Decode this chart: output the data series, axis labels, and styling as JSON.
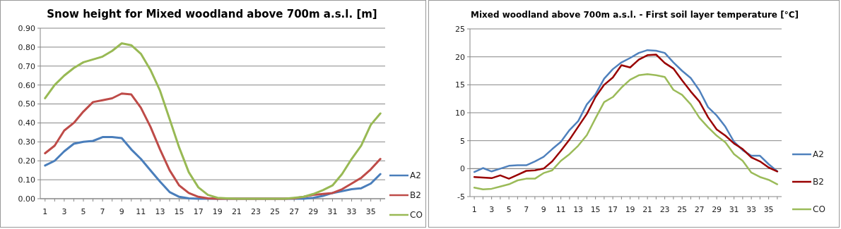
{
  "chart_data": [
    {
      "type": "line",
      "title": "Snow height for Mixed woodland above 700m a.s.l. [m]",
      "x": [
        1,
        2,
        3,
        4,
        5,
        6,
        7,
        8,
        9,
        10,
        11,
        12,
        13,
        14,
        15,
        16,
        17,
        18,
        19,
        20,
        21,
        22,
        23,
        24,
        25,
        26,
        27,
        28,
        29,
        30,
        31,
        32,
        33,
        34,
        35,
        36
      ],
      "xlim": [
        0.5,
        36.5
      ],
      "xticks": [
        1,
        {
          "value": 2,
          "label": null
        },
        3,
        {
          "value": 4,
          "label": null
        },
        5,
        {
          "value": 6,
          "label": null
        },
        7,
        {
          "value": 8,
          "label": null
        },
        9,
        {
          "value": 10,
          "label": null
        },
        11,
        {
          "value": 12,
          "label": null
        },
        13,
        {
          "value": 14,
          "label": null
        },
        15,
        {
          "value": 16,
          "label": null
        },
        17,
        {
          "value": 18,
          "label": null
        },
        19,
        {
          "value": 20,
          "label": null
        },
        21,
        {
          "value": 22,
          "label": null
        },
        23,
        {
          "value": 24,
          "label": null
        },
        25,
        {
          "value": 26,
          "label": null
        },
        27,
        {
          "value": 28,
          "label": null
        },
        29,
        {
          "value": 30,
          "label": null
        },
        31,
        {
          "value": 32,
          "label": null
        },
        33,
        {
          "value": 34,
          "label": null
        },
        35,
        {
          "value": 36,
          "label": null
        }
      ],
      "ylim": [
        0,
        0.9
      ],
      "yticks": [
        {
          "value": 0,
          "label": "0.00"
        },
        {
          "value": 0.1,
          "label": "0.10"
        },
        {
          "value": 0.2,
          "label": "0.20"
        },
        {
          "value": 0.3,
          "label": "0.30"
        },
        {
          "value": 0.4,
          "label": "0.40"
        },
        {
          "value": 0.5,
          "label": "0.50"
        },
        {
          "value": 0.6,
          "label": "0.60"
        },
        {
          "value": 0.7,
          "label": "0.70"
        },
        {
          "value": 0.8,
          "label": "0.80"
        },
        {
          "value": 0.9,
          "label": "0.90"
        }
      ],
      "grid": "y",
      "legend": "right",
      "marker": "none",
      "line_style": "solid",
      "series": [
        {
          "name": "A2",
          "color": "#4a7ebb",
          "values": [
            0.175,
            0.2,
            0.25,
            0.29,
            0.3,
            0.305,
            0.325,
            0.325,
            0.32,
            0.26,
            0.21,
            0.15,
            0.09,
            0.035,
            0.01,
            0.002,
            0,
            0,
            0,
            0,
            0,
            0,
            0,
            0,
            0,
            0,
            0,
            0,
            0.005,
            0.015,
            0.03,
            0.04,
            0.05,
            0.055,
            0.08,
            0.13
          ]
        },
        {
          "name": "B2",
          "color": "#be4b48",
          "values": [
            0.24,
            0.28,
            0.36,
            0.4,
            0.46,
            0.51,
            0.52,
            0.53,
            0.555,
            0.55,
            0.48,
            0.38,
            0.26,
            0.15,
            0.07,
            0.03,
            0.01,
            0.002,
            0,
            0,
            0,
            0,
            0,
            0,
            0,
            0,
            0.002,
            0.01,
            0.02,
            0.025,
            0.03,
            0.05,
            0.08,
            0.11,
            0.155,
            0.21
          ]
        },
        {
          "name": "CO",
          "color": "#98b954",
          "values": [
            0.53,
            0.6,
            0.65,
            0.69,
            0.72,
            0.735,
            0.75,
            0.78,
            0.82,
            0.81,
            0.765,
            0.68,
            0.57,
            0.42,
            0.27,
            0.14,
            0.06,
            0.02,
            0.005,
            0.002,
            0,
            0,
            0,
            0,
            0,
            0,
            0.005,
            0.01,
            0.025,
            0.045,
            0.07,
            0.13,
            0.21,
            0.28,
            0.39,
            0.45
          ]
        }
      ]
    },
    {
      "type": "line",
      "title": "Mixed woodland above 700m a.s.l. - First soil layer temperature [°C]",
      "x": [
        1,
        2,
        3,
        4,
        5,
        6,
        7,
        8,
        9,
        10,
        11,
        12,
        13,
        14,
        15,
        16,
        17,
        18,
        19,
        20,
        21,
        22,
        23,
        24,
        25,
        26,
        27,
        28,
        29,
        30,
        31,
        32,
        33,
        34,
        35,
        36
      ],
      "xlim": [
        0.5,
        36.5
      ],
      "xticks": [
        1,
        {
          "value": 2,
          "label": null
        },
        3,
        {
          "value": 4,
          "label": null
        },
        5,
        {
          "value": 6,
          "label": null
        },
        7,
        {
          "value": 8,
          "label": null
        },
        9,
        {
          "value": 10,
          "label": null
        },
        11,
        {
          "value": 12,
          "label": null
        },
        13,
        {
          "value": 14,
          "label": null
        },
        15,
        {
          "value": 16,
          "label": null
        },
        17,
        {
          "value": 18,
          "label": null
        },
        19,
        {
          "value": 20,
          "label": null
        },
        21,
        {
          "value": 22,
          "label": null
        },
        23,
        {
          "value": 24,
          "label": null
        },
        25,
        {
          "value": 26,
          "label": null
        },
        27,
        {
          "value": 28,
          "label": null
        },
        29,
        {
          "value": 30,
          "label": null
        },
        31,
        {
          "value": 32,
          "label": null
        },
        33,
        {
          "value": 34,
          "label": null
        },
        35,
        {
          "value": 36,
          "label": null
        }
      ],
      "ylim": [
        -5,
        25
      ],
      "yticks": [
        -5,
        0,
        5,
        10,
        15,
        20,
        25
      ],
      "grid": "y",
      "legend": "right",
      "marker": "none",
      "line_style": "solid",
      "series": [
        {
          "name": "A2",
          "color": "#4f81bd",
          "values": [
            -0.6,
            0.1,
            -0.5,
            0,
            0.5,
            0.6,
            0.6,
            1.3,
            2.1,
            3.5,
            4.8,
            6.9,
            8.5,
            11.5,
            13.3,
            16.1,
            17.8,
            19,
            19.8,
            20.7,
            21.2,
            21.1,
            20.7,
            19,
            17.5,
            16.2,
            14,
            11,
            9.5,
            7.5,
            4.8,
            3.3,
            2.3,
            2.3,
            0.8,
            -0.5
          ]
        },
        {
          "name": "B2",
          "color": "#990000",
          "values": [
            -1.5,
            -1.6,
            -1.7,
            -1.2,
            -1.8,
            -1.1,
            -0.4,
            -0.3,
            0,
            1.3,
            3.2,
            5.2,
            7.5,
            9.8,
            12.8,
            15,
            16.3,
            18.5,
            18.1,
            19.5,
            20.3,
            20.4,
            18.9,
            17.9,
            15.8,
            13.8,
            12,
            9.2,
            7,
            5.9,
            4.5,
            3.5,
            2,
            1.3,
            0.2,
            -0.5
          ]
        },
        {
          "name": "CO",
          "color": "#9bbb59",
          "values": [
            -3.4,
            -3.7,
            -3.6,
            -3.2,
            -2.8,
            -2.1,
            -1.8,
            -1.8,
            -0.8,
            -0.3,
            1.4,
            2.6,
            4.1,
            6,
            9,
            11.9,
            12.8,
            14.5,
            15.9,
            16.7,
            16.9,
            16.7,
            16.4,
            14.1,
            13.2,
            11.5,
            9.1,
            7.4,
            5.9,
            4.7,
            2.6,
            1.4,
            -0.7,
            -1.5,
            -2,
            -2.8
          ]
        }
      ]
    }
  ]
}
